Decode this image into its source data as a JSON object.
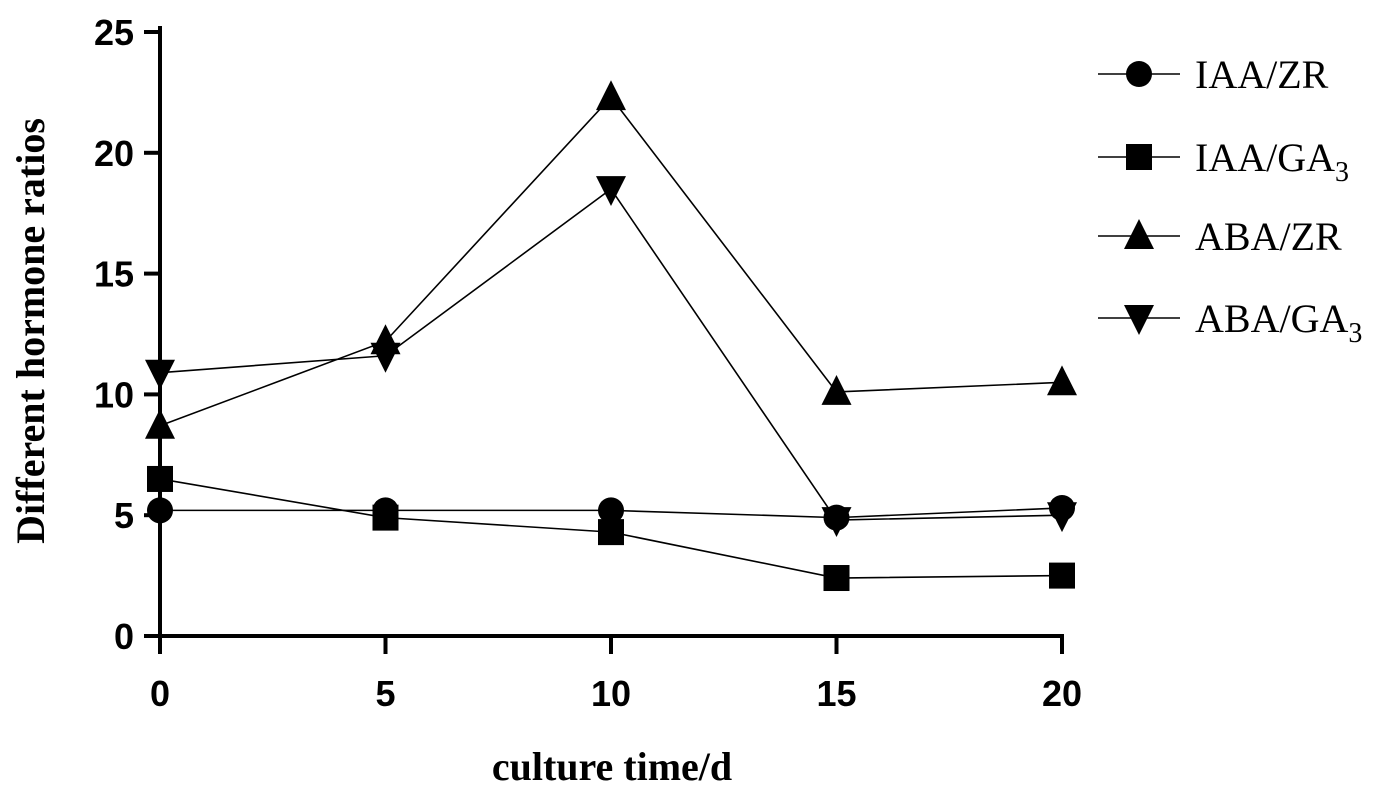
{
  "chart_data": {
    "type": "line",
    "title": "",
    "xlabel": "culture time/d",
    "ylabel": "Different hormone ratios",
    "xlim": [
      0,
      20
    ],
    "ylim": [
      0,
      25
    ],
    "xticks": [
      "0",
      "5",
      "10",
      "15",
      "20"
    ],
    "yticks": [
      "0",
      "5",
      "10",
      "15",
      "20",
      "25"
    ],
    "x": [
      0,
      5,
      10,
      15,
      20
    ],
    "grid": false,
    "legend_position": "right",
    "series": [
      {
        "name": "IAA/ZR",
        "name_main": "IAA/ZR",
        "name_sub": "",
        "marker": "circle",
        "values": [
          5.2,
          5.2,
          5.2,
          4.9,
          5.3
        ]
      },
      {
        "name": "IAA/GA3",
        "name_main": "IAA/GA",
        "name_sub": "3",
        "marker": "square",
        "values": [
          6.5,
          4.9,
          4.3,
          2.4,
          2.5
        ]
      },
      {
        "name": "ABA/ZR",
        "name_main": "ABA/ZR",
        "name_sub": "",
        "marker": "triangle-up",
        "values": [
          8.7,
          12.2,
          22.3,
          10.1,
          10.5
        ]
      },
      {
        "name": "ABA/GA3",
        "name_main": "ABA/GA",
        "name_sub": "3",
        "marker": "triangle-down",
        "values": [
          10.9,
          11.6,
          18.5,
          4.8,
          5.0
        ]
      }
    ]
  }
}
